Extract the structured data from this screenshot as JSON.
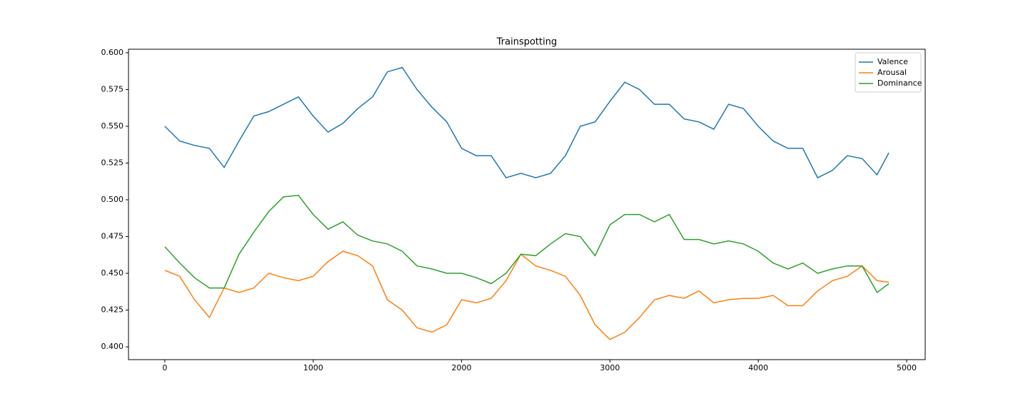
{
  "chart_data": {
    "type": "line",
    "title": "Trainspotting",
    "x": [
      0,
      100,
      200,
      300,
      400,
      500,
      600,
      700,
      800,
      900,
      1000,
      1100,
      1200,
      1300,
      1400,
      1500,
      1600,
      1700,
      1800,
      1900,
      2000,
      2100,
      2200,
      2300,
      2400,
      2500,
      2600,
      2700,
      2800,
      2900,
      3000,
      3100,
      3200,
      3300,
      3400,
      3500,
      3600,
      3700,
      3800,
      3900,
      4000,
      4100,
      4200,
      4300,
      4400,
      4500,
      4600,
      4700,
      4800,
      4880
    ],
    "series": [
      {
        "name": "Valence",
        "color": "#1f77b4",
        "values": [
          0.55,
          0.54,
          0.537,
          0.535,
          0.522,
          0.54,
          0.557,
          0.56,
          0.565,
          0.57,
          0.557,
          0.546,
          0.552,
          0.562,
          0.57,
          0.587,
          0.59,
          0.575,
          0.563,
          0.553,
          0.535,
          0.53,
          0.53,
          0.515,
          0.518,
          0.515,
          0.518,
          0.53,
          0.55,
          0.553,
          0.567,
          0.58,
          0.575,
          0.565,
          0.565,
          0.555,
          0.553,
          0.548,
          0.565,
          0.562,
          0.55,
          0.54,
          0.535,
          0.535,
          0.515,
          0.52,
          0.53,
          0.528,
          0.517,
          0.532
        ]
      },
      {
        "name": "Arousal",
        "color": "#ff7f0e",
        "values": [
          0.452,
          0.448,
          0.432,
          0.42,
          0.44,
          0.437,
          0.44,
          0.45,
          0.447,
          0.445,
          0.448,
          0.458,
          0.465,
          0.462,
          0.455,
          0.432,
          0.425,
          0.413,
          0.41,
          0.415,
          0.432,
          0.43,
          0.433,
          0.445,
          0.463,
          0.455,
          0.452,
          0.448,
          0.435,
          0.415,
          0.405,
          0.41,
          0.42,
          0.432,
          0.435,
          0.433,
          0.438,
          0.43,
          0.432,
          0.433,
          0.433,
          0.435,
          0.428,
          0.428,
          0.438,
          0.445,
          0.448,
          0.455,
          0.445,
          0.444
        ]
      },
      {
        "name": "Dominance",
        "color": "#2ca02c",
        "values": [
          0.468,
          0.457,
          0.447,
          0.44,
          0.44,
          0.463,
          0.478,
          0.492,
          0.502,
          0.503,
          0.49,
          0.48,
          0.485,
          0.476,
          0.472,
          0.47,
          0.465,
          0.455,
          0.453,
          0.45,
          0.45,
          0.447,
          0.443,
          0.45,
          0.463,
          0.462,
          0.47,
          0.477,
          0.475,
          0.462,
          0.483,
          0.49,
          0.49,
          0.485,
          0.49,
          0.473,
          0.473,
          0.47,
          0.472,
          0.47,
          0.465,
          0.457,
          0.453,
          0.457,
          0.45,
          0.453,
          0.455,
          0.455,
          0.437,
          0.443
        ]
      }
    ],
    "xlim": [
      -245,
      5125
    ],
    "xticks": [
      0,
      1000,
      2000,
      3000,
      4000,
      5000
    ],
    "ylim": [
      0.3913,
      0.6024
    ],
    "yticks": [
      {
        "value": 0.4,
        "label": "0.400"
      },
      {
        "value": 0.425,
        "label": "0.425"
      },
      {
        "value": 0.45,
        "label": "0.450"
      },
      {
        "value": 0.475,
        "label": "0.475"
      },
      {
        "value": 0.5,
        "label": "0.500"
      },
      {
        "value": 0.525,
        "label": "0.525"
      },
      {
        "value": 0.55,
        "label": "0.550"
      },
      {
        "value": 0.575,
        "label": "0.575"
      },
      {
        "value": 0.6,
        "label": "0.600"
      }
    ],
    "legend": "upper right"
  }
}
